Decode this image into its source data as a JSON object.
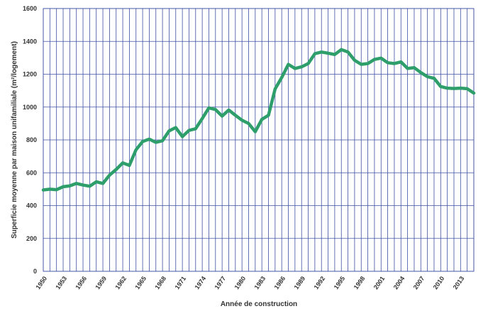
{
  "chart_data": {
    "type": "line",
    "title": "",
    "xlabel": "Année de construction",
    "ylabel": "Superficie moyenne par maison unifamiliale (m²/logement)",
    "ylim": [
      0,
      1600
    ],
    "xlim": [
      1950,
      2015
    ],
    "y_ticks": [
      0,
      200,
      400,
      600,
      800,
      1000,
      1200,
      1400,
      1600
    ],
    "x_ticks": [
      1950,
      1953,
      1956,
      1959,
      1962,
      1965,
      1968,
      1971,
      1974,
      1977,
      1980,
      1983,
      1986,
      1989,
      1992,
      1995,
      1998,
      2001,
      2004,
      2007,
      2010,
      2013
    ],
    "grid": true,
    "line_color": "#2e9e6b",
    "grid_color": "#3d4fa3",
    "series": [
      {
        "x": [
          1950,
          1951,
          1952,
          1953,
          1954,
          1955,
          1956,
          1957,
          1958,
          1959,
          1960,
          1961,
          1962,
          1963,
          1964,
          1965,
          1966,
          1967,
          1968,
          1969,
          1970,
          1971,
          1972,
          1973,
          1974,
          1975,
          1976,
          1977,
          1978,
          1979,
          1980,
          1981,
          1982,
          1983,
          1984,
          1985,
          1986,
          1987,
          1988,
          1989,
          1990,
          1991,
          1992,
          1993,
          1994,
          1995,
          1996,
          1997,
          1998,
          1999,
          2000,
          2001,
          2002,
          2003,
          2004,
          2005,
          2006,
          2007,
          2008,
          2009,
          2010,
          2011,
          2012,
          2013,
          2014,
          2015
        ],
        "values": [
          495,
          500,
          497,
          515,
          520,
          535,
          525,
          518,
          545,
          535,
          585,
          620,
          660,
          645,
          740,
          790,
          805,
          785,
          795,
          855,
          875,
          820,
          858,
          868,
          930,
          995,
          985,
          945,
          982,
          950,
          920,
          900,
          850,
          925,
          950,
          1110,
          1180,
          1260,
          1235,
          1245,
          1265,
          1325,
          1335,
          1328,
          1320,
          1350,
          1335,
          1285,
          1260,
          1265,
          1290,
          1298,
          1270,
          1265,
          1275,
          1235,
          1240,
          1210,
          1185,
          1175,
          1125,
          1115,
          1113,
          1115,
          1112,
          1085
        ]
      }
    ]
  }
}
